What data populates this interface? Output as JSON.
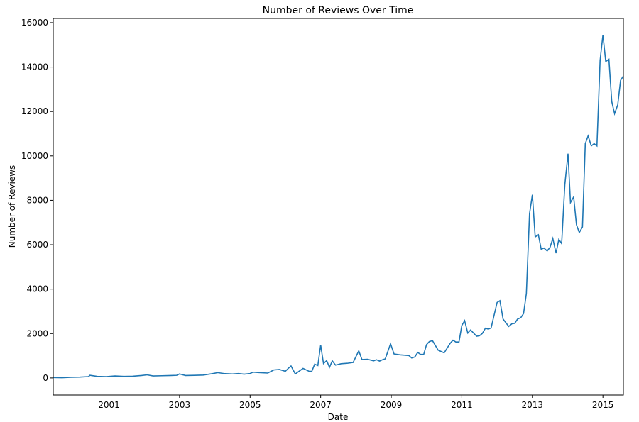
{
  "chart_data": {
    "type": "line",
    "title": "Number of Reviews Over Time",
    "x_label": "Date",
    "y_label": "Number of Reviews",
    "x": [
      1999.42,
      1999.67,
      1999.92,
      2000.17,
      2000.42,
      2000.46,
      2000.67,
      2000.92,
      2001.17,
      2001.42,
      2001.67,
      2001.92,
      2002.08,
      2002.25,
      2002.5,
      2002.75,
      2002.92,
      2003.0,
      2003.17,
      2003.42,
      2003.67,
      2003.92,
      2004.08,
      2004.25,
      2004.5,
      2004.67,
      2004.83,
      2005.0,
      2005.08,
      2005.25,
      2005.5,
      2005.67,
      2005.83,
      2006.0,
      2006.08,
      2006.16,
      2006.28,
      2006.5,
      2006.67,
      2006.75,
      2006.83,
      2006.92,
      2007.0,
      2007.08,
      2007.17,
      2007.25,
      2007.33,
      2007.42,
      2007.58,
      2007.75,
      2007.92,
      2008.08,
      2008.17,
      2008.33,
      2008.5,
      2008.58,
      2008.67,
      2008.75,
      2008.83,
      2008.98,
      2009.08,
      2009.25,
      2009.5,
      2009.58,
      2009.67,
      2009.75,
      2009.83,
      2009.92,
      2010.0,
      2010.08,
      2010.17,
      2010.33,
      2010.5,
      2010.67,
      2010.75,
      2010.83,
      2010.92,
      2011.0,
      2011.08,
      2011.17,
      2011.25,
      2011.42,
      2011.5,
      2011.58,
      2011.67,
      2011.75,
      2011.83,
      2012.0,
      2012.08,
      2012.17,
      2012.33,
      2012.42,
      2012.5,
      2012.58,
      2012.67,
      2012.75,
      2012.83,
      2012.92,
      2013.0,
      2013.08,
      2013.17,
      2013.25,
      2013.33,
      2013.42,
      2013.5,
      2013.58,
      2013.67,
      2013.75,
      2013.83,
      2013.92,
      2014.01,
      2014.08,
      2014.17,
      2014.25,
      2014.33,
      2014.42,
      2014.5,
      2014.58,
      2014.67,
      2014.75,
      2014.83,
      2014.92,
      2015.0,
      2015.08,
      2015.17,
      2015.25,
      2015.33,
      2015.42,
      2015.5,
      2015.58
    ],
    "series": [
      {
        "name": "Number of Reviews",
        "color": "#1f77b4",
        "values": [
          20,
          10,
          30,
          40,
          60,
          120,
          70,
          60,
          90,
          70,
          80,
          110,
          140,
          90,
          100,
          110,
          120,
          180,
          110,
          120,
          130,
          190,
          240,
          200,
          180,
          200,
          170,
          200,
          260,
          240,
          220,
          360,
          380,
          300,
          430,
          540,
          180,
          430,
          300,
          300,
          620,
          560,
          1480,
          650,
          780,
          480,
          770,
          580,
          640,
          660,
          700,
          1220,
          830,
          840,
          770,
          820,
          760,
          820,
          860,
          1540,
          1080,
          1040,
          1010,
          900,
          950,
          1150,
          1060,
          1060,
          1500,
          1640,
          1680,
          1250,
          1130,
          1560,
          1700,
          1620,
          1620,
          2360,
          2580,
          2020,
          2160,
          1880,
          1900,
          2000,
          2240,
          2200,
          2250,
          3400,
          3480,
          2650,
          2320,
          2440,
          2460,
          2650,
          2710,
          2900,
          3800,
          7400,
          8250,
          6350,
          6450,
          5800,
          5850,
          5720,
          5880,
          6280,
          5620,
          6240,
          6050,
          8700,
          10100,
          7900,
          8150,
          6900,
          6550,
          6800,
          10550,
          10900,
          10450,
          10550,
          10450,
          14300,
          15450,
          14250,
          14350,
          12450,
          11900,
          12300,
          13400,
          13600
        ]
      }
    ],
    "xlim": [
      1999.42,
      2015.58
    ],
    "xticks": [
      2001,
      2003,
      2005,
      2007,
      2009,
      2011,
      2013,
      2015
    ],
    "ylim": [
      -770,
      16190
    ],
    "yticks": [
      0,
      2000,
      4000,
      6000,
      8000,
      10000,
      12000,
      14000,
      16000
    ],
    "grid": false
  }
}
